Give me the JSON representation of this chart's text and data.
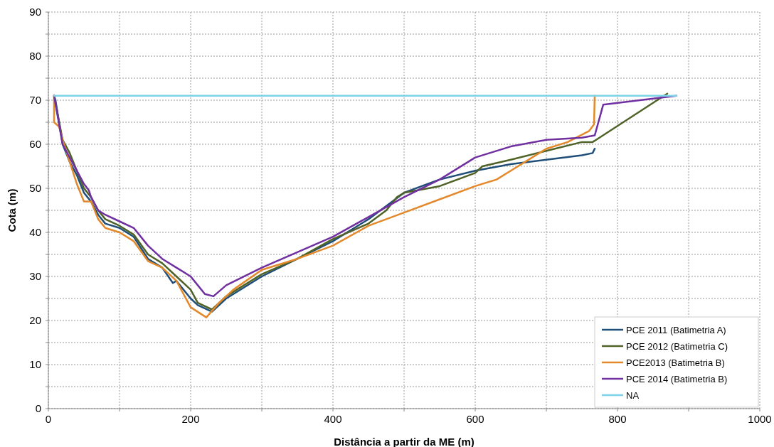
{
  "chart_data": {
    "type": "line",
    "xlabel": "Distância a partir da ME (m)",
    "ylabel": "Cota (m)",
    "xlim": [
      0,
      1000
    ],
    "ylim": [
      0,
      90
    ],
    "xticks": [
      0,
      {
        "value": 100,
        "label": null
      },
      200,
      {
        "value": 300,
        "label": null
      },
      400,
      {
        "value": 500,
        "label": null
      },
      600,
      {
        "value": 700,
        "label": null
      },
      800,
      {
        "value": 900,
        "label": null
      },
      1000
    ],
    "yticks": [
      0,
      {
        "value": 5,
        "label": null
      },
      10,
      {
        "value": 15,
        "label": null
      },
      20,
      {
        "value": 25,
        "label": null
      },
      30,
      {
        "value": 35,
        "label": null
      },
      40,
      {
        "value": 45,
        "label": null
      },
      50,
      {
        "value": 55,
        "label": null
      },
      60,
      {
        "value": 65,
        "label": null
      },
      70,
      {
        "value": 75,
        "label": null
      },
      80,
      {
        "value": 85,
        "label": null
      },
      90
    ],
    "grid": true,
    "legend": "bottom right",
    "line_style": "solid",
    "series": [
      {
        "name": "PCE 2011 (Batimetria A)",
        "color": "#1f4e79",
        "x": [
          8,
          10,
          20,
          30,
          40,
          50,
          60,
          70,
          80,
          100,
          120,
          140,
          160,
          175,
          180,
          200,
          210,
          230,
          250,
          300,
          350,
          400,
          450,
          500,
          550,
          600,
          650,
          700,
          750,
          765,
          768
        ],
        "values": [
          71,
          70,
          60,
          56,
          53,
          49,
          47,
          44,
          42,
          41,
          39,
          34,
          32,
          28.5,
          29,
          25,
          23.5,
          22,
          25,
          30,
          34,
          38,
          43,
          49,
          52,
          54,
          55.5,
          56.5,
          57.5,
          58,
          59
        ]
      },
      {
        "name": "PCE 2012 (Batimetria C)",
        "color": "#4f6228",
        "x": [
          8,
          20,
          30,
          40,
          50,
          60,
          70,
          80,
          100,
          120,
          140,
          160,
          180,
          200,
          210,
          230,
          250,
          300,
          350,
          400,
          450,
          475,
          490,
          500,
          550,
          600,
          610,
          650,
          700,
          750,
          765,
          770,
          870
        ],
        "values": [
          71,
          61,
          58,
          54,
          50,
          48,
          45,
          43,
          41.5,
          39.5,
          35,
          33,
          30,
          27,
          24,
          22.5,
          25.5,
          30.5,
          34,
          38.5,
          42,
          45,
          48,
          49,
          50.5,
          53.5,
          55,
          56.5,
          58.5,
          60.5,
          60.5,
          61,
          71.5
        ]
      },
      {
        "name": "PCE2013 (Batimetria B)",
        "color": "#e3892b",
        "x": [
          8,
          8,
          15,
          20,
          30,
          40,
          50,
          60,
          70,
          80,
          100,
          120,
          140,
          160,
          180,
          200,
          222,
          240,
          260,
          300,
          350,
          400,
          450,
          500,
          550,
          600,
          630,
          650,
          680,
          700,
          730,
          760,
          767,
          768
        ],
        "values": [
          71,
          65,
          64,
          61,
          56,
          51,
          47,
          47,
          43,
          41,
          40,
          38,
          33.5,
          32,
          29,
          23,
          20.7,
          24,
          27,
          31.5,
          34,
          37,
          41.5,
          44.5,
          47.5,
          50.5,
          52,
          54,
          57,
          59,
          60.5,
          63,
          64.5,
          71
        ]
      },
      {
        "name": "PCE 2014 (Batimetria B)",
        "color": "#7030a0",
        "x": [
          8,
          20,
          30,
          40,
          50,
          57,
          60,
          70,
          80,
          100,
          120,
          140,
          160,
          180,
          200,
          210,
          220,
          232,
          250,
          300,
          350,
          400,
          450,
          500,
          550,
          600,
          650,
          700,
          750,
          768,
          780,
          883
        ],
        "values": [
          71,
          60,
          57,
          54,
          51,
          49.5,
          48,
          45,
          44,
          42.5,
          41,
          37,
          34,
          32,
          30,
          28,
          26,
          25.5,
          28,
          32,
          35.5,
          39,
          43.5,
          48,
          52,
          57,
          59.5,
          61,
          61.5,
          62,
          69,
          71
        ]
      },
      {
        "name": "NA",
        "color": "#7fd3e8",
        "x": [
          8,
          883
        ],
        "values": [
          71,
          71
        ]
      }
    ]
  }
}
